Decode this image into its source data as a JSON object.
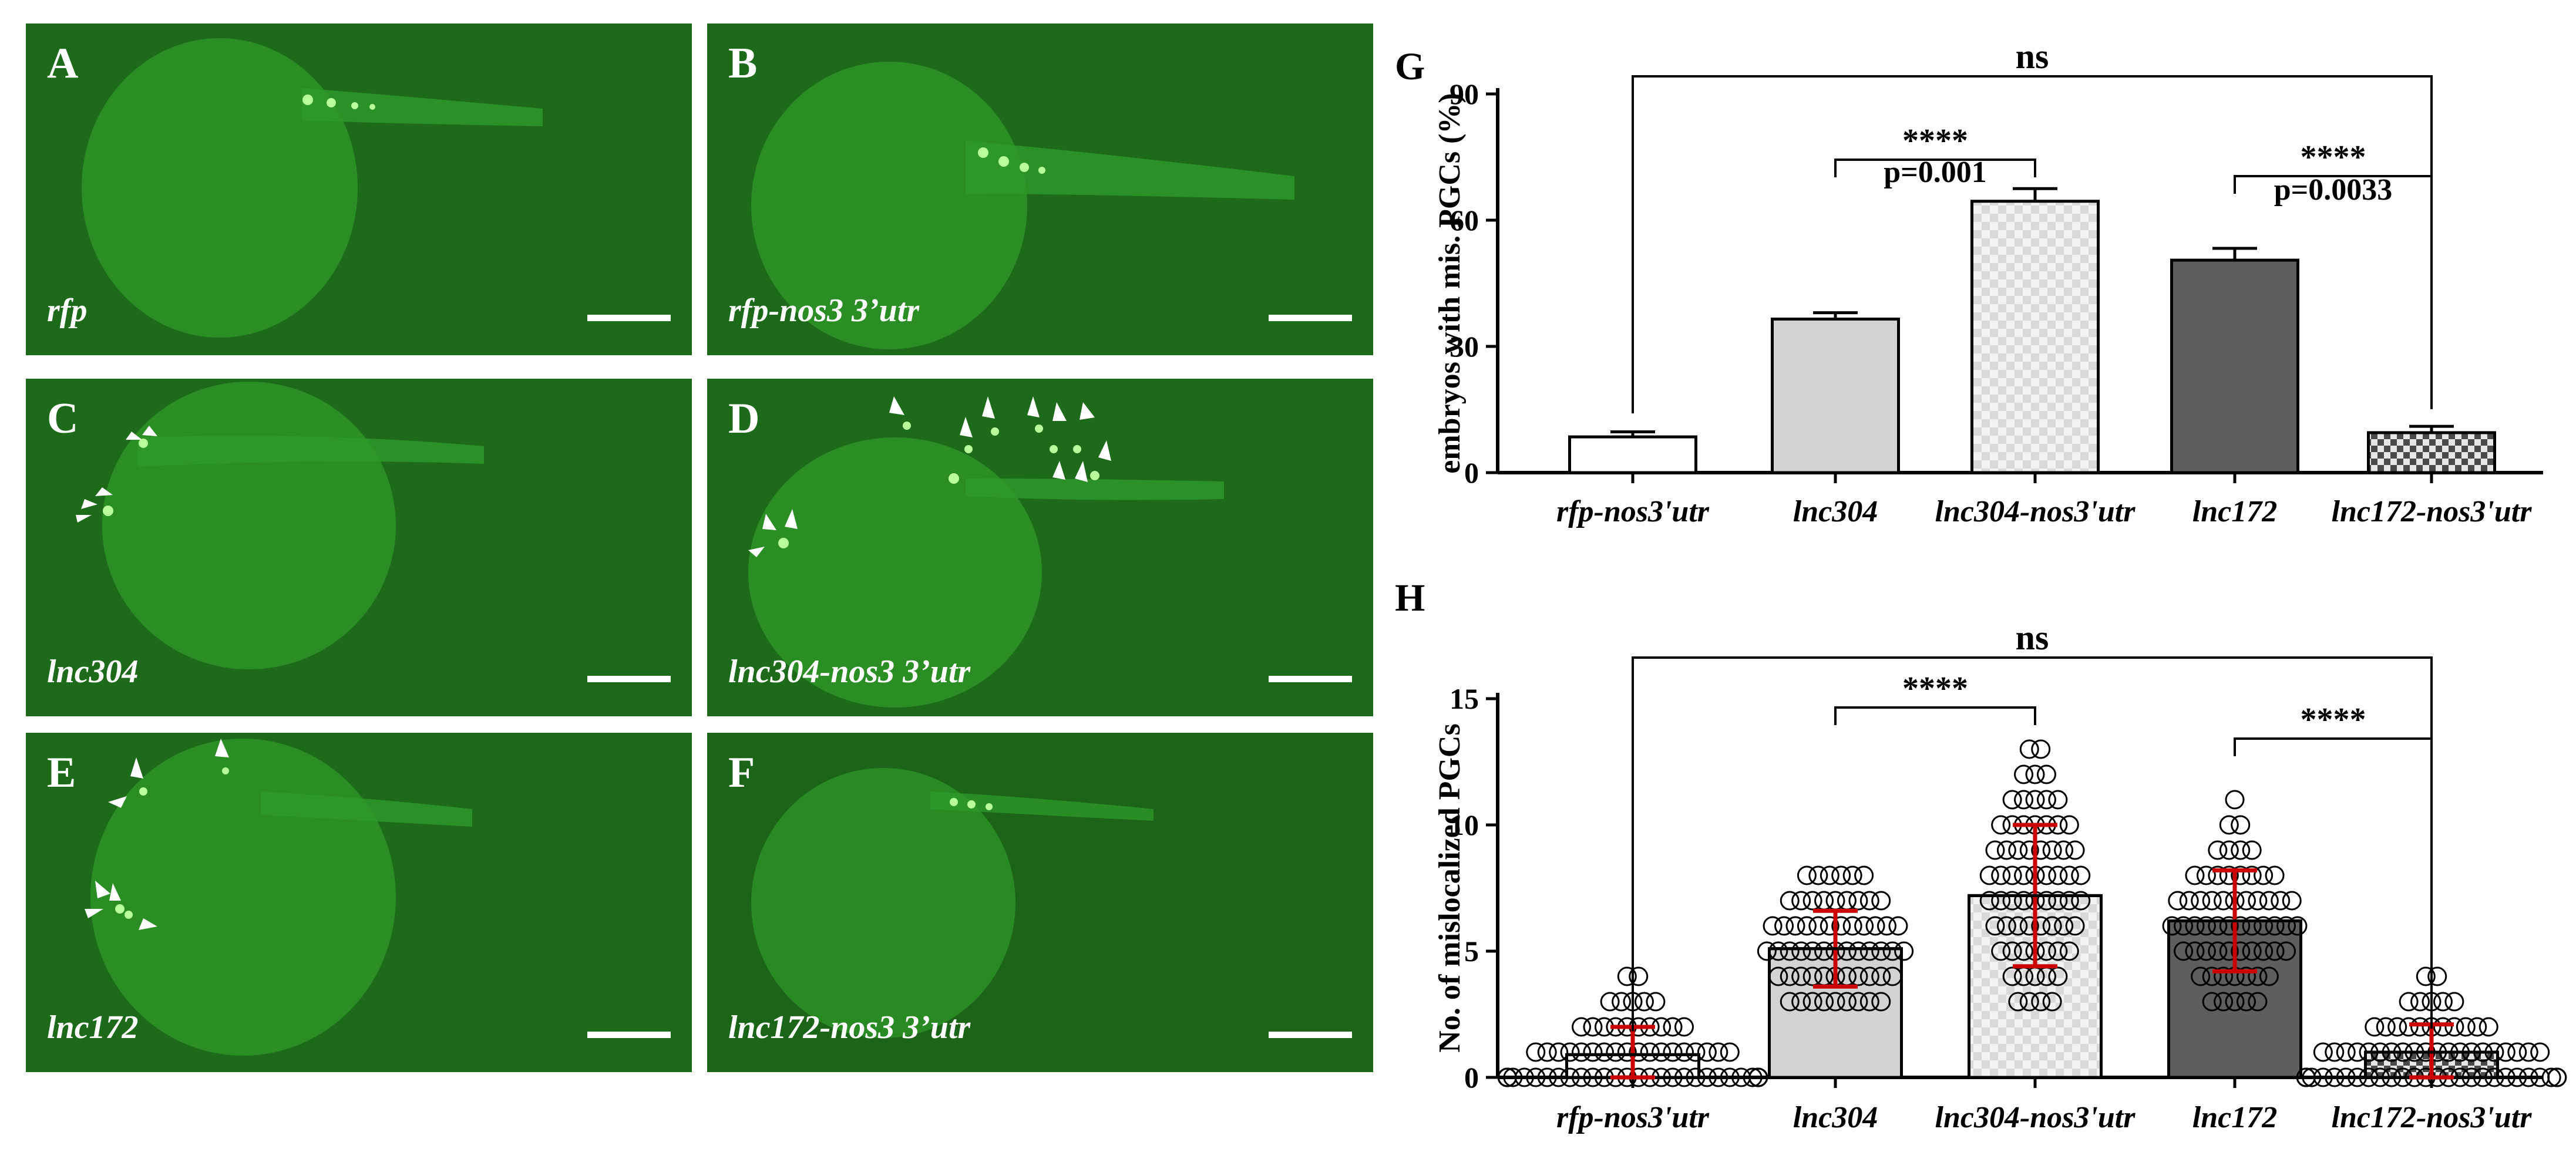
{
  "panels": [
    {
      "id": "A",
      "label": "A",
      "condition": "rfp"
    },
    {
      "id": "B",
      "label": "B",
      "condition": "rfp-nos3 3’utr"
    },
    {
      "id": "C",
      "label": "C",
      "condition": "lnc304"
    },
    {
      "id": "D",
      "label": "D",
      "condition": "lnc304-nos3 3’utr"
    },
    {
      "id": "E",
      "label": "E",
      "condition": "lnc172"
    },
    {
      "id": "F",
      "label": "F",
      "condition": "lnc172-nos3 3’utr"
    }
  ],
  "colors": {
    "micrograph_bg": "#1d6b1a",
    "embryo": "#2f9a2a",
    "pgc": "#b8ff9c",
    "arrow": "#ffffff"
  },
  "chart_data": [
    {
      "panel_label": "G",
      "type": "bar",
      "ylabel": "embryos with mis. PGCs (%)",
      "categories": [
        "rfp-nos3'utr",
        "lnc304",
        "lnc304-nos3'utr",
        "lnc172",
        "lnc172-nos3'utr"
      ],
      "values": [
        8.5,
        36.5,
        64.5,
        50.5,
        9.5
      ],
      "errors": [
        1.2,
        1.5,
        3.0,
        2.8,
        1.5
      ],
      "fills": [
        "#ffffff",
        "#d3d3d3",
        "checker-light",
        "#5e5e5e",
        "checker-dark"
      ],
      "ylim": [
        0,
        90
      ],
      "yticks": [
        0,
        30,
        60,
        90
      ],
      "annotations": [
        {
          "text": "ns",
          "from": 0,
          "to": 4
        },
        {
          "text": "****",
          "sub": "p=0.001",
          "from": 1,
          "to": 2
        },
        {
          "text": "****",
          "sub": "p=0.0033",
          "from": 3,
          "to": 4
        }
      ]
    },
    {
      "panel_label": "H",
      "type": "bar",
      "ylabel": "No. of mislocalized PGCs",
      "categories": [
        "rfp-nos3'utr",
        "lnc304",
        "lnc304-nos3'utr",
        "lnc172",
        "lnc172-nos3'utr"
      ],
      "values": [
        0.9,
        5.1,
        7.2,
        6.2,
        1.0
      ],
      "sd": [
        1.1,
        1.5,
        2.8,
        2.0,
        1.1
      ],
      "fills": [
        "#ffffff",
        "#d3d3d3",
        "checker-light",
        "#5e5e5e",
        "checker-dark"
      ],
      "ylim": [
        0,
        15
      ],
      "yticks": [
        0,
        5,
        10,
        15
      ],
      "points": [
        {
          "0": 30,
          "1": 18,
          "2": 10,
          "3": 5,
          "4": 2
        },
        {
          "3": 9,
          "4": 11,
          "5": 13,
          "6": 12,
          "7": 9,
          "8": 6
        },
        {
          "3": 4,
          "4": 5,
          "5": 7,
          "6": 8,
          "7": 9,
          "8": 9,
          "9": 8,
          "10": 7,
          "11": 5,
          "12": 3,
          "13": 2
        },
        {
          "3": 5,
          "4": 7,
          "5": 10,
          "6": 12,
          "7": 11,
          "8": 8,
          "9": 4,
          "10": 2,
          "11": 1
        },
        {
          "0": 28,
          "1": 20,
          "2": 11,
          "3": 5,
          "4": 2
        }
      ],
      "annotations": [
        {
          "text": "ns",
          "from": 0,
          "to": 4
        },
        {
          "text": "****",
          "from": 1,
          "to": 2
        },
        {
          "text": "****",
          "from": 3,
          "to": 4
        }
      ]
    }
  ]
}
